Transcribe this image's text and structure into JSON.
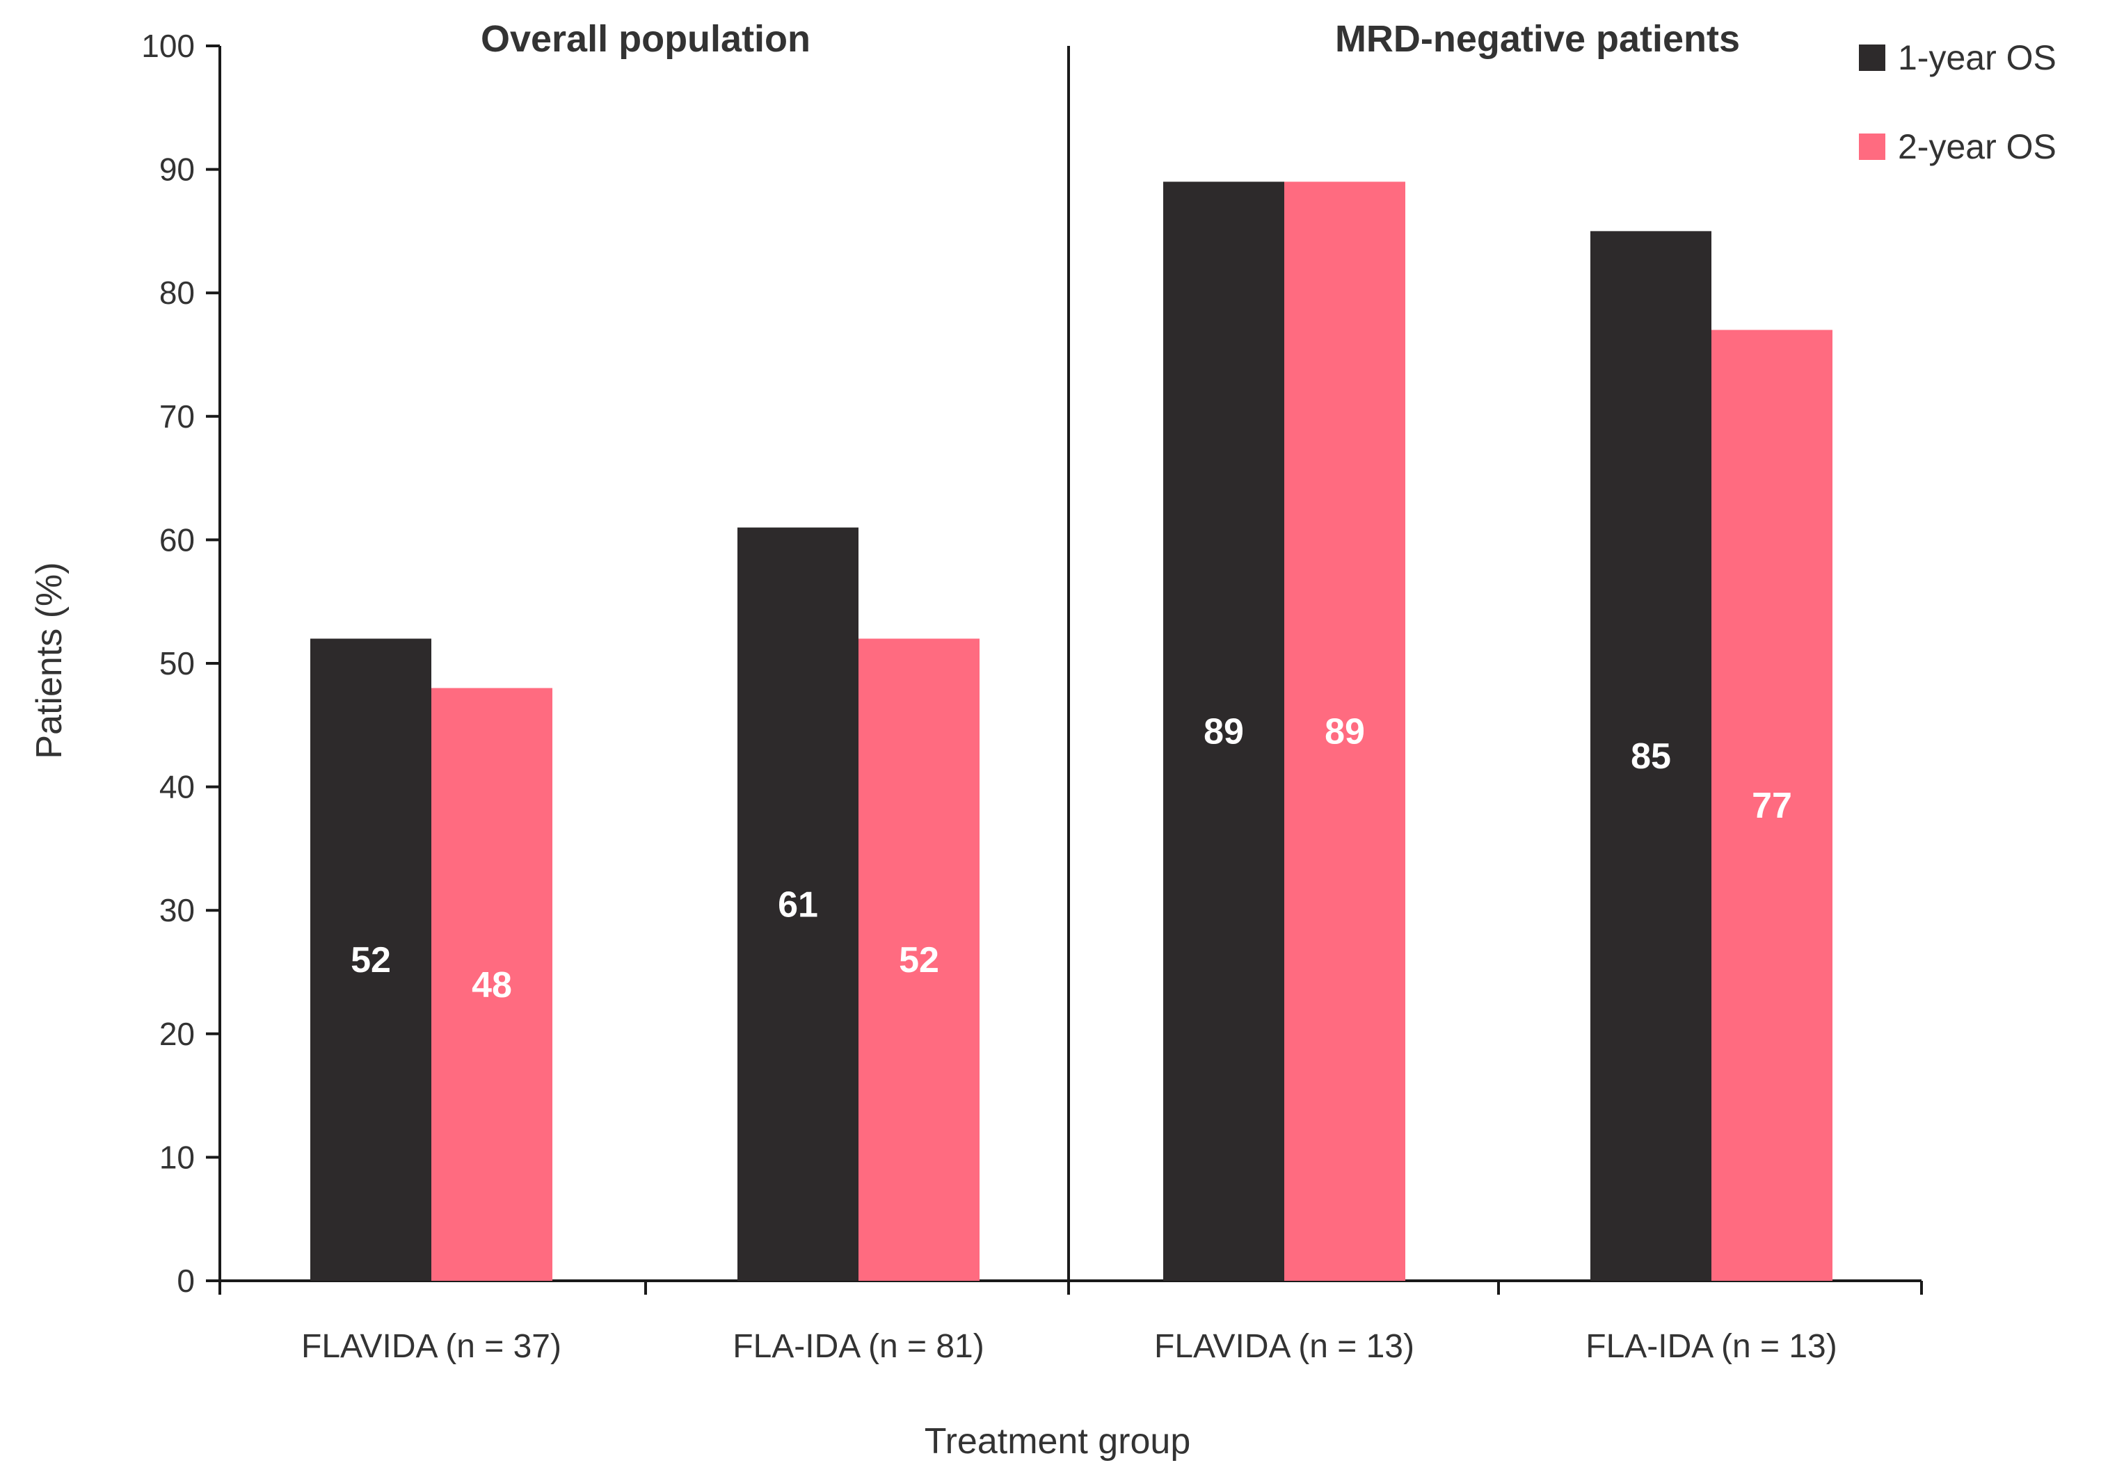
{
  "chart_data": {
    "type": "bar",
    "ylabel": "Patients (%)",
    "xlabel": "Treatment group",
    "ylim": [
      0,
      100
    ],
    "yticks": [
      0,
      10,
      20,
      30,
      40,
      50,
      60,
      70,
      80,
      90,
      100
    ],
    "yticks_text": [
      "0",
      "10",
      "20",
      "30",
      "40",
      "50",
      "60",
      "70",
      "80",
      "90",
      "100"
    ],
    "grid": false,
    "legend_position": "top-right",
    "panels": [
      {
        "title": "Overall population",
        "categories": [
          "FLAVIDA (n = 37)",
          "FLA-IDA (n = 81)"
        ]
      },
      {
        "title": "MRD-negative patients",
        "categories": [
          "FLAVIDA (n = 13)",
          "FLA-IDA (n = 13)"
        ]
      }
    ],
    "categories": [
      "FLAVIDA (n = 37)",
      "FLA-IDA (n = 81)",
      "FLAVIDA (n = 13)",
      "FLA-IDA (n = 13)"
    ],
    "series": [
      {
        "name": "1-year OS",
        "color": "#2d2a2b",
        "values": [
          52,
          61,
          89,
          85
        ],
        "labels": [
          "52",
          "61",
          "89",
          "85"
        ]
      },
      {
        "name": "2-year OS",
        "color": "#ff6b80",
        "values": [
          48,
          52,
          89,
          77
        ],
        "labels": [
          "48",
          "52",
          "89",
          "77"
        ]
      }
    ]
  }
}
